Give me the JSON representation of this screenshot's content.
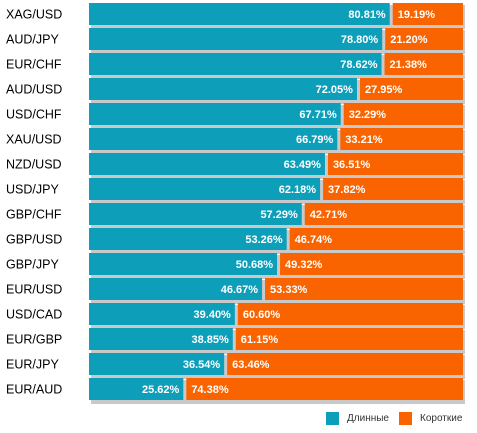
{
  "chart_data": {
    "type": "bar",
    "stacked": true,
    "orientation": "horizontal",
    "percent": true,
    "categories": [
      "XAG/USD",
      "AUD/JPY",
      "EUR/CHF",
      "AUD/USD",
      "USD/CHF",
      "XAU/USD",
      "NZD/USD",
      "USD/JPY",
      "GBP/CHF",
      "GBP/USD",
      "GBP/JPY",
      "EUR/USD",
      "USD/CAD",
      "EUR/GBP",
      "EUR/JPY",
      "EUR/AUD"
    ],
    "series": [
      {
        "name": "Длинные",
        "color": "#0d9fba",
        "values": [
          80.81,
          78.8,
          78.62,
          72.05,
          67.71,
          66.79,
          63.49,
          62.18,
          57.29,
          53.26,
          50.68,
          46.67,
          39.4,
          38.85,
          36.54,
          25.62
        ],
        "labels": [
          "80.81%",
          "78.80%",
          "78.62%",
          "72.05%",
          "67.71%",
          "66.79%",
          "63.49%",
          "62.18%",
          "57.29%",
          "53.26%",
          "50.68%",
          "46.67%",
          "39.40%",
          "38.85%",
          "36.54%",
          "25.62%"
        ]
      },
      {
        "name": "Короткие",
        "color": "#fa6400",
        "values": [
          19.19,
          21.2,
          21.38,
          27.95,
          32.29,
          33.21,
          36.51,
          37.82,
          42.71,
          46.74,
          49.32,
          53.33,
          60.6,
          61.15,
          63.46,
          74.38
        ],
        "labels": [
          "19.19%",
          "21.20%",
          "21.38%",
          "27.95%",
          "32.29%",
          "33.21%",
          "36.51%",
          "37.82%",
          "42.71%",
          "46.74%",
          "49.32%",
          "53.33%",
          "60.60%",
          "61.15%",
          "63.46%",
          "74.38%"
        ]
      }
    ],
    "xlim": [
      0,
      100
    ],
    "legend_position": "bottom-right",
    "grid": false
  }
}
